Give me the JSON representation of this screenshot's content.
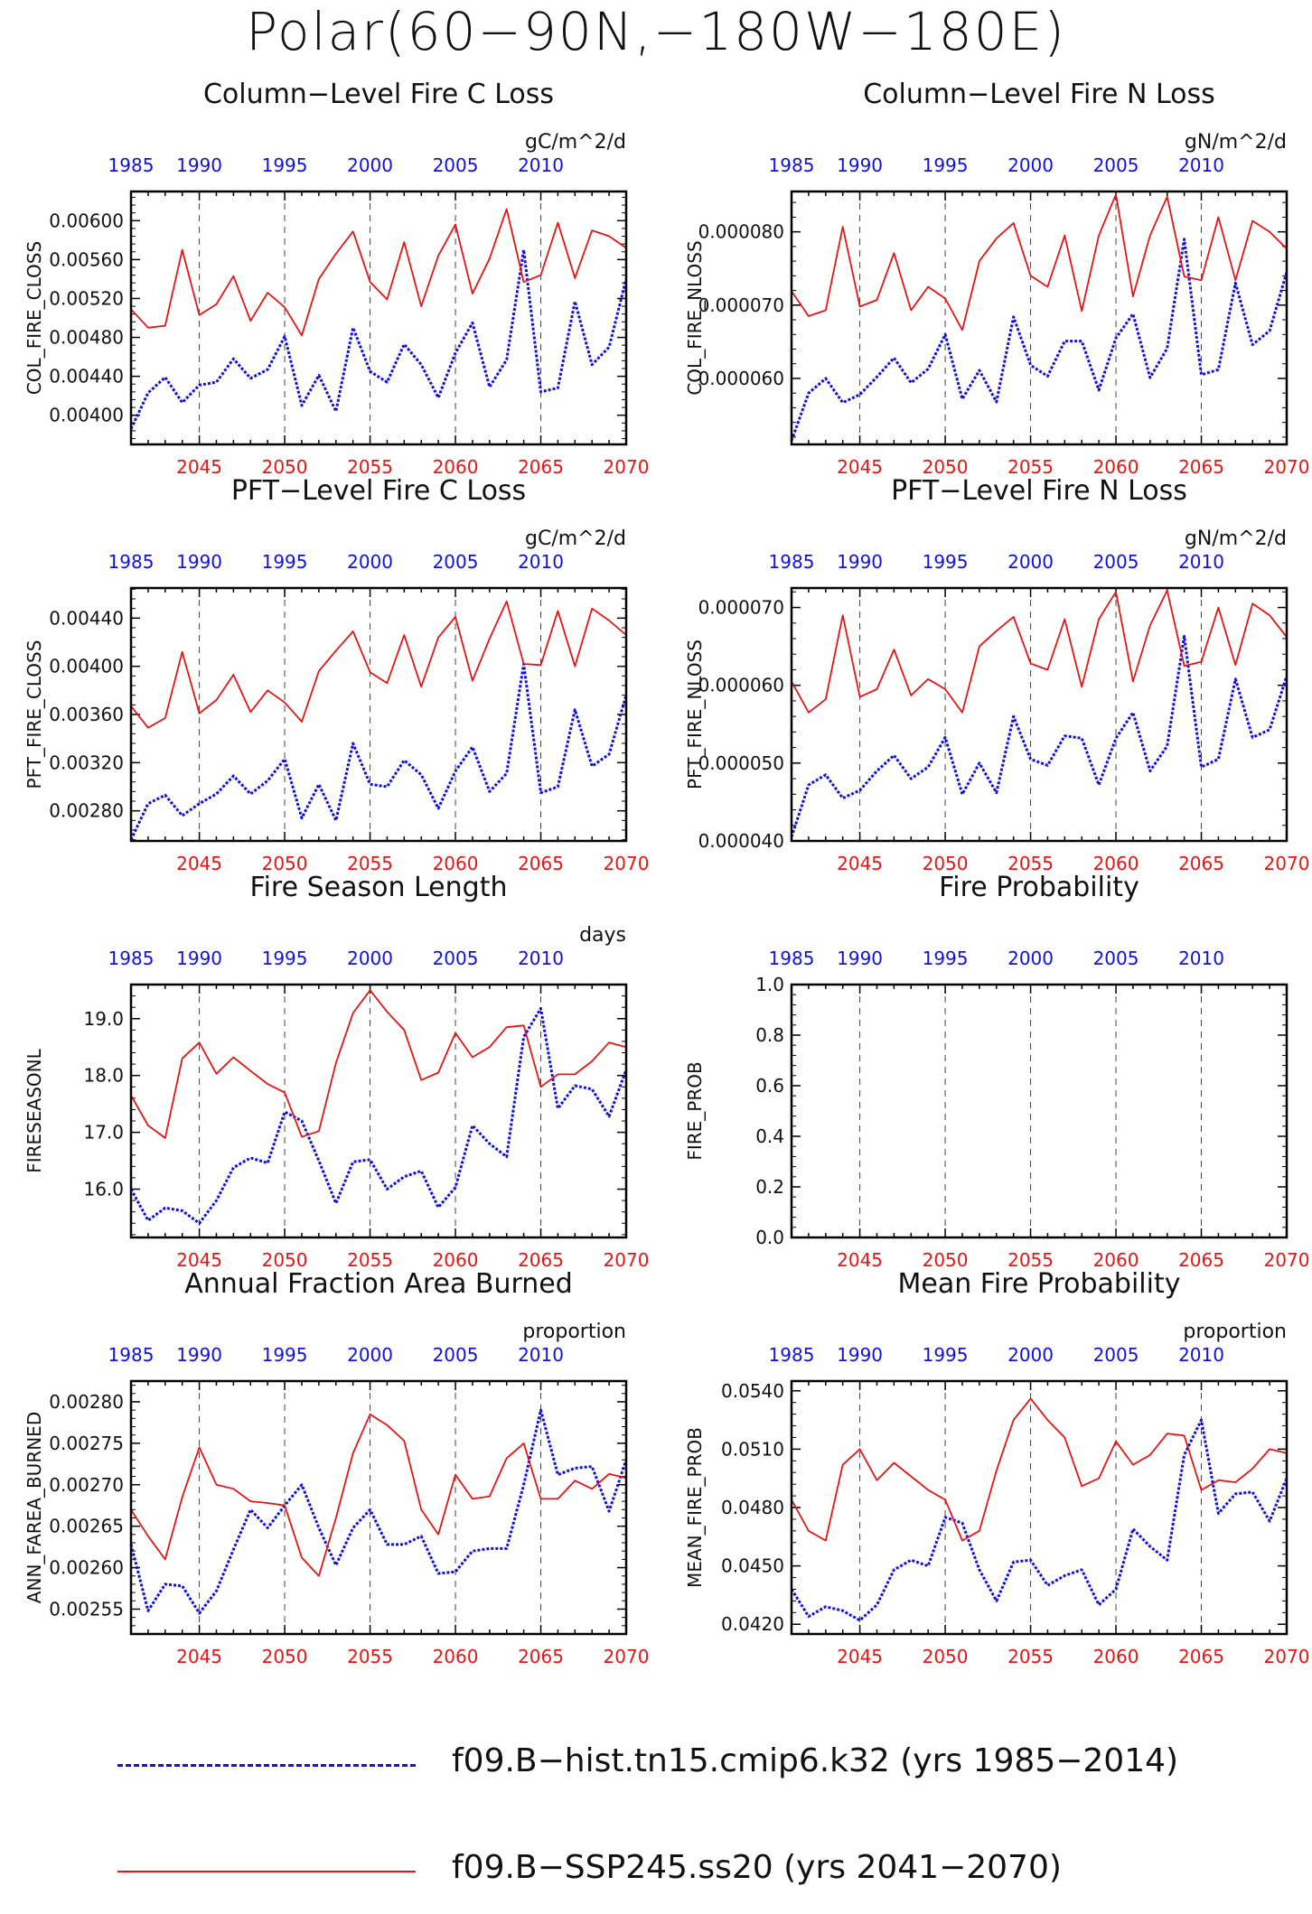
{
  "title": "Polar(60−90N,−180W−180E)",
  "colors": {
    "hist": "#1010e0",
    "ssp": "#e51515",
    "axis": "#000000"
  },
  "legend": [
    {
      "label": "f09.B−hist.tn15.cmip6.k32 (yrs 1985−2014)",
      "color": "#1010e0",
      "style": "dashed"
    },
    {
      "label": "f09.B−SSP245.ss20 (yrs 2041−2070)",
      "color": "#e51515",
      "style": "solid"
    }
  ],
  "top_axis_ticks": [
    "1985",
    "1990",
    "1995",
    "2000",
    "2005",
    "2010"
  ],
  "bottom_axis_ticks": [
    "2045",
    "2050",
    "2055",
    "2060",
    "2065",
    "2070"
  ],
  "chart_data": [
    {
      "type": "line",
      "title": "Column−Level Fire C Loss",
      "units": "gC/m^2/d",
      "ylabel": "COL_FIRE_CLOSS",
      "ylim": [
        0.0037,
        0.0063
      ],
      "yticks": [
        "0.00400",
        "0.00440",
        "0.00480",
        "0.00520",
        "0.00560",
        "0.00600"
      ],
      "ytick_values": [
        0.004,
        0.0044,
        0.0048,
        0.0052,
        0.0056,
        0.006
      ],
      "series": [
        {
          "name": "f09.B−hist.tn15.cmip6.k32",
          "x_range": [
            1985,
            2014
          ],
          "values": [
            0.00386,
            0.00423,
            0.00439,
            0.00413,
            0.00431,
            0.00434,
            0.00458,
            0.00438,
            0.00447,
            0.00481,
            0.0041,
            0.00441,
            0.00404,
            0.0049,
            0.00445,
            0.00434,
            0.00473,
            0.00452,
            0.00418,
            0.00464,
            0.00495,
            0.00429,
            0.00457,
            0.0057,
            0.00424,
            0.00428,
            0.00517,
            0.00452,
            0.0047,
            0.0054
          ]
        },
        {
          "name": "f09.B−SSP245.ss20",
          "x_range": [
            2041,
            2070
          ],
          "values": [
            0.00509,
            0.0049,
            0.00492,
            0.0057,
            0.00503,
            0.00514,
            0.00543,
            0.00497,
            0.00526,
            0.00511,
            0.00482,
            0.0054,
            0.00566,
            0.00589,
            0.00537,
            0.00519,
            0.00578,
            0.00512,
            0.00564,
            0.00596,
            0.00525,
            0.00561,
            0.00612,
            0.00537,
            0.00544,
            0.00598,
            0.00541,
            0.0059,
            0.00584,
            0.00572
          ]
        }
      ]
    },
    {
      "type": "line",
      "title": "Column−Level Fire N Loss",
      "units": "gN/m^2/d",
      "ylabel": "COL_FIRE_NLOSS",
      "ylim": [
        5.1e-05,
        8.55e-05
      ],
      "yticks": [
        "0.000060",
        "0.000070",
        "0.000080"
      ],
      "ytick_values": [
        6e-05,
        7e-05,
        8e-05
      ],
      "series": [
        {
          "name": "f09.B−hist.tn15.cmip6.k32",
          "x_range": [
            1985,
            2014
          ],
          "values": [
            5.15e-05,
            5.8e-05,
            6e-05,
            5.67e-05,
            5.78e-05,
            6.02e-05,
            6.28e-05,
            5.94e-05,
            6.13e-05,
            6.6e-05,
            5.72e-05,
            6.11e-05,
            5.68e-05,
            6.84e-05,
            6.18e-05,
            6.03e-05,
            6.51e-05,
            6.51e-05,
            5.84e-05,
            6.55e-05,
            6.88e-05,
            6.01e-05,
            6.41e-05,
            7.9e-05,
            6.05e-05,
            6.12e-05,
            7.3e-05,
            6.46e-05,
            6.65e-05,
            7.45e-05
          ]
        },
        {
          "name": "f09.B−SSP245.ss20",
          "x_range": [
            2041,
            2070
          ],
          "values": [
            7.19e-05,
            6.85e-05,
            6.93e-05,
            8.07e-05,
            6.98e-05,
            7.07e-05,
            7.71e-05,
            6.93e-05,
            7.25e-05,
            7.09e-05,
            6.66e-05,
            7.6e-05,
            7.91e-05,
            8.12e-05,
            7.4e-05,
            7.25e-05,
            7.95e-05,
            6.92e-05,
            7.95e-05,
            8.51e-05,
            7.12e-05,
            7.95e-05,
            8.48e-05,
            7.39e-05,
            7.34e-05,
            8.2e-05,
            7.34e-05,
            8.15e-05,
            8e-05,
            7.77e-05
          ]
        }
      ]
    },
    {
      "type": "line",
      "title": "PFT−Level Fire C Loss",
      "units": "gC/m^2/d",
      "ylabel": "PFT_FIRE_CLOSS",
      "ylim": [
        0.00255,
        0.00465
      ],
      "yticks": [
        "0.00280",
        "0.00320",
        "0.00360",
        "0.00400",
        "0.00440"
      ],
      "ytick_values": [
        0.0028,
        0.0032,
        0.0036,
        0.004,
        0.0044
      ],
      "series": [
        {
          "name": "f09.B−hist.tn15.cmip6.k32",
          "x_range": [
            1985,
            2014
          ],
          "values": [
            0.00256,
            0.00286,
            0.00293,
            0.00276,
            0.00286,
            0.00294,
            0.00309,
            0.00294,
            0.00305,
            0.00323,
            0.00274,
            0.00302,
            0.00272,
            0.00336,
            0.00302,
            0.003,
            0.00322,
            0.0031,
            0.00282,
            0.00313,
            0.00333,
            0.00296,
            0.00311,
            0.00402,
            0.00295,
            0.003,
            0.00364,
            0.00317,
            0.00327,
            0.00376
          ]
        },
        {
          "name": "f09.B−SSP245.ss20",
          "x_range": [
            2041,
            2070
          ],
          "values": [
            0.00367,
            0.00349,
            0.00357,
            0.00412,
            0.00361,
            0.00372,
            0.00393,
            0.00362,
            0.0038,
            0.0037,
            0.00354,
            0.00396,
            0.00413,
            0.00429,
            0.00395,
            0.00386,
            0.00426,
            0.00383,
            0.00424,
            0.00441,
            0.00388,
            0.00423,
            0.00454,
            0.00402,
            0.00401,
            0.00446,
            0.004,
            0.00448,
            0.00438,
            0.00426
          ]
        }
      ]
    },
    {
      "type": "line",
      "title": "PFT−Level Fire N Loss",
      "units": "gN/m^2/d",
      "ylabel": "PFT_FIRE_NLOSS",
      "ylim": [
        4e-05,
        7.25e-05
      ],
      "yticks": [
        "0.000040",
        "0.000050",
        "0.000060",
        "0.000070"
      ],
      "ytick_values": [
        4e-05,
        5e-05,
        6e-05,
        7e-05
      ],
      "series": [
        {
          "name": "f09.B−hist.tn15.cmip6.k32",
          "x_range": [
            1985,
            2014
          ],
          "values": [
            4.05e-05,
            4.72e-05,
            4.85e-05,
            4.55e-05,
            4.65e-05,
            4.9e-05,
            5.1e-05,
            4.8e-05,
            4.95e-05,
            5.33e-05,
            4.6e-05,
            5e-05,
            4.62e-05,
            5.6e-05,
            5.05e-05,
            4.97e-05,
            5.35e-05,
            5.32e-05,
            4.72e-05,
            5.32e-05,
            5.65e-05,
            4.9e-05,
            5.22e-05,
            6.63e-05,
            4.95e-05,
            5.05e-05,
            6.08e-05,
            5.33e-05,
            5.43e-05,
            6.12e-05
          ]
        },
        {
          "name": "f09.B−SSP245.ss20",
          "x_range": [
            2041,
            2070
          ],
          "values": [
            6.05e-05,
            5.65e-05,
            5.82e-05,
            6.9e-05,
            5.85e-05,
            5.95e-05,
            6.46e-05,
            5.87e-05,
            6.08e-05,
            5.95e-05,
            5.65e-05,
            6.5e-05,
            6.7e-05,
            6.88e-05,
            6.28e-05,
            6.2e-05,
            6.85e-05,
            5.98e-05,
            6.85e-05,
            7.2e-05,
            6.05e-05,
            6.77e-05,
            7.22e-05,
            6.25e-05,
            6.3e-05,
            7e-05,
            6.26e-05,
            7.05e-05,
            6.9e-05,
            6.62e-05
          ]
        }
      ]
    },
    {
      "type": "line",
      "title": "Fire Season Length",
      "units": "days",
      "ylabel": "FIRESEASONL",
      "ylim": [
        15.15,
        19.6
      ],
      "yticks": [
        "16.0",
        "17.0",
        "18.0",
        "19.0"
      ],
      "ytick_values": [
        16,
        17,
        18,
        19
      ],
      "series": [
        {
          "name": "f09.B−hist.tn15.cmip6.k32",
          "x_range": [
            1985,
            2014
          ],
          "values": [
            16.0,
            15.45,
            15.67,
            15.62,
            15.4,
            15.8,
            16.38,
            16.55,
            16.46,
            17.36,
            17.2,
            16.5,
            15.75,
            16.48,
            16.52,
            16.0,
            16.22,
            16.32,
            15.68,
            16.03,
            17.12,
            16.8,
            16.57,
            18.68,
            19.18,
            17.42,
            17.82,
            17.76,
            17.28,
            18.1
          ]
        },
        {
          "name": "f09.B−SSP245.ss20",
          "x_range": [
            2041,
            2070
          ],
          "values": [
            17.65,
            17.12,
            16.9,
            18.3,
            18.58,
            18.03,
            18.32,
            18.08,
            17.85,
            17.7,
            16.92,
            17.02,
            18.22,
            19.1,
            19.5,
            19.12,
            18.8,
            17.92,
            18.05,
            18.75,
            18.32,
            18.5,
            18.85,
            18.88,
            17.8,
            18.02,
            18.02,
            18.25,
            18.58,
            18.5
          ]
        }
      ]
    },
    {
      "type": "line",
      "title": "Fire Probability",
      "units": "",
      "ylabel": "FIRE_PROB",
      "ylim": [
        0,
        1
      ],
      "yticks": [
        "0.0",
        "0.2",
        "0.4",
        "0.6",
        "0.8",
        "1.0"
      ],
      "ytick_values": [
        0,
        0.2,
        0.4,
        0.6,
        0.8,
        1
      ],
      "series": []
    },
    {
      "type": "line",
      "title": "Annual Fraction Area Burned",
      "units": "proportion",
      "ylabel": "ANN_FAREA_BURNED",
      "ylim": [
        0.00252,
        0.002825
      ],
      "yticks": [
        "0.00255",
        "0.00260",
        "0.00265",
        "0.00270",
        "0.00275",
        "0.00280"
      ],
      "ytick_values": [
        0.00255,
        0.0026,
        0.00265,
        0.0027,
        0.00275,
        0.0028
      ],
      "series": [
        {
          "name": "f09.B−hist.tn15.cmip6.k32",
          "x_range": [
            1985,
            2014
          ],
          "values": [
            0.002628,
            0.002548,
            0.00258,
            0.002578,
            0.002545,
            0.002572,
            0.002622,
            0.00267,
            0.002648,
            0.002675,
            0.0027,
            0.002648,
            0.002603,
            0.002648,
            0.00267,
            0.002628,
            0.002628,
            0.002638,
            0.002593,
            0.002595,
            0.00262,
            0.002623,
            0.002623,
            0.0027,
            0.00279,
            0.002712,
            0.00272,
            0.002722,
            0.002668,
            0.00273
          ]
        },
        {
          "name": "f09.B−SSP245.ss20",
          "x_range": [
            2041,
            2070
          ],
          "values": [
            0.00267,
            0.002638,
            0.00261,
            0.002685,
            0.002745,
            0.0027,
            0.002695,
            0.00268,
            0.002678,
            0.002675,
            0.002612,
            0.00259,
            0.00266,
            0.002738,
            0.002785,
            0.002772,
            0.002753,
            0.00267,
            0.00264,
            0.002712,
            0.002683,
            0.002686,
            0.002732,
            0.00275,
            0.002683,
            0.002683,
            0.002705,
            0.002695,
            0.002713,
            0.002708
          ]
        }
      ]
    },
    {
      "type": "line",
      "title": "Mean Fire Probability",
      "units": "proportion",
      "ylabel": "MEAN_FIRE_PROB",
      "ylim": [
        0.0415,
        0.0545
      ],
      "yticks": [
        "0.0420",
        "0.0450",
        "0.0480",
        "0.0510",
        "0.0540"
      ],
      "ytick_values": [
        0.042,
        0.045,
        0.048,
        0.051,
        0.054
      ],
      "series": [
        {
          "name": "f09.B−hist.tn15.cmip6.k32",
          "x_range": [
            1985,
            2014
          ],
          "values": [
            0.0438,
            0.0424,
            0.0429,
            0.0427,
            0.0422,
            0.043,
            0.0448,
            0.0453,
            0.045,
            0.0475,
            0.0472,
            0.0448,
            0.0432,
            0.0452,
            0.0453,
            0.044,
            0.0445,
            0.0448,
            0.043,
            0.0438,
            0.0469,
            0.046,
            0.0453,
            0.0507,
            0.0525,
            0.0477,
            0.0487,
            0.0488,
            0.0473,
            0.0495
          ]
        },
        {
          "name": "f09.B−SSP245.ss20",
          "x_range": [
            2041,
            2070
          ],
          "values": [
            0.0484,
            0.0468,
            0.0463,
            0.0502,
            0.051,
            0.0494,
            0.0503,
            0.0496,
            0.0489,
            0.0484,
            0.0463,
            0.0468,
            0.0499,
            0.0525,
            0.0536,
            0.0525,
            0.0516,
            0.0491,
            0.0495,
            0.0514,
            0.0502,
            0.0507,
            0.0518,
            0.0517,
            0.0489,
            0.0494,
            0.0493,
            0.05,
            0.051,
            0.0508
          ]
        }
      ]
    }
  ]
}
